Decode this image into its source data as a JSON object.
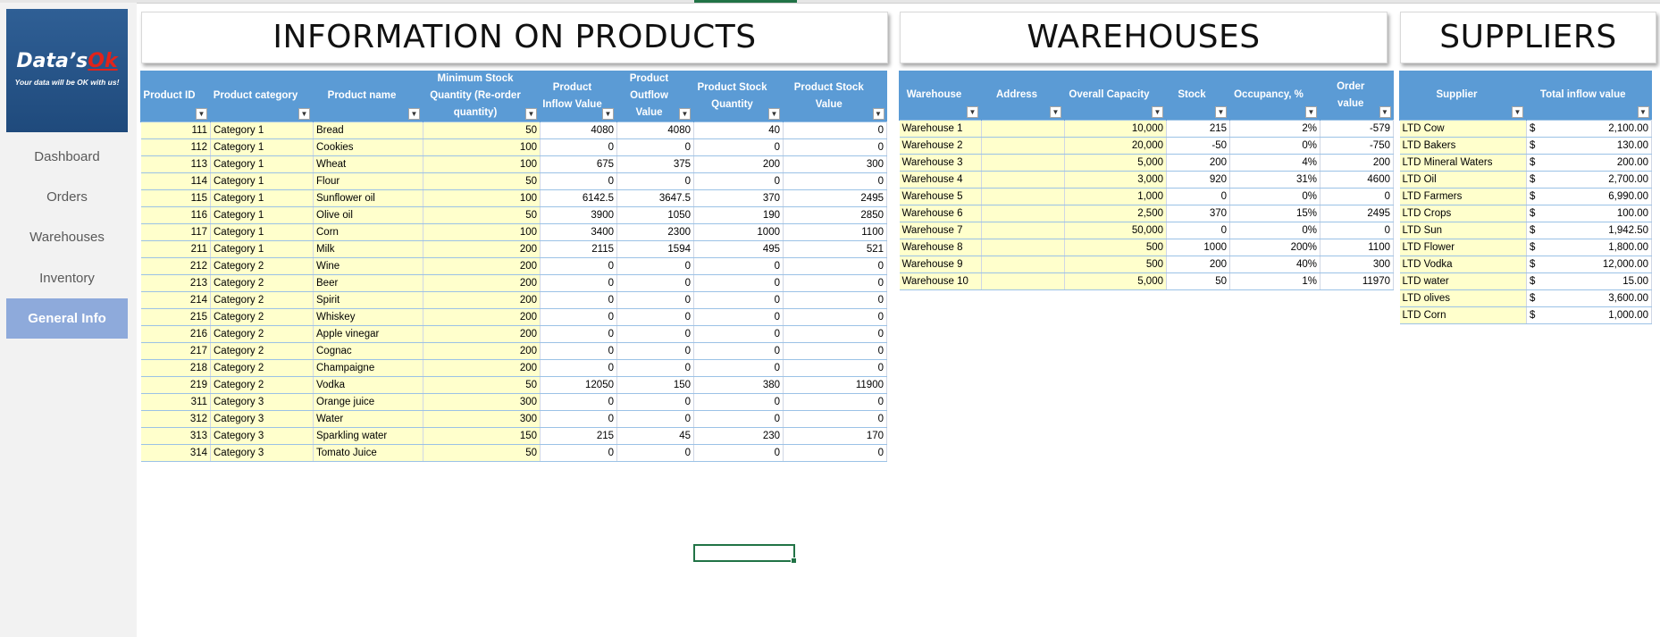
{
  "brand": {
    "name_main": "Data’s",
    "name_ok": "Ok",
    "tagline": "Your data will be OK with us!"
  },
  "nav": [
    {
      "label": "Dashboard",
      "active": false
    },
    {
      "label": "Orders",
      "active": false
    },
    {
      "label": "Warehouses",
      "active": false
    },
    {
      "label": "Inventory",
      "active": false
    },
    {
      "label": "General Info",
      "active": true
    }
  ],
  "titles": {
    "products": "INFORMATION ON PRODUCTS",
    "warehouses": "WAREHOUSES",
    "suppliers": "SUPPLIERS"
  },
  "products": {
    "headers": [
      "Product ID",
      "Product category",
      "Product name",
      "Minimum Stock Quantity (Re-order quantity)",
      "Product Inflow Value",
      "Product Outflow Value",
      "Product Stock Quantity",
      "Product Stock Value"
    ],
    "rows": [
      [
        "111",
        "Category 1",
        "Bread",
        "50",
        "4080",
        "4080",
        "40",
        "0"
      ],
      [
        "112",
        "Category 1",
        "Cookies",
        "100",
        "0",
        "0",
        "0",
        "0"
      ],
      [
        "113",
        "Category 1",
        "Wheat",
        "100",
        "675",
        "375",
        "200",
        "300"
      ],
      [
        "114",
        "Category 1",
        "Flour",
        "50",
        "0",
        "0",
        "0",
        "0"
      ],
      [
        "115",
        "Category 1",
        "Sunflower oil",
        "100",
        "6142.5",
        "3647.5",
        "370",
        "2495"
      ],
      [
        "116",
        "Category 1",
        "Olive oil",
        "50",
        "3900",
        "1050",
        "190",
        "2850"
      ],
      [
        "117",
        "Category 1",
        "Corn",
        "100",
        "3400",
        "2300",
        "1000",
        "1100"
      ],
      [
        "211",
        "Category 1",
        "Milk",
        "200",
        "2115",
        "1594",
        "495",
        "521"
      ],
      [
        "212",
        "Category 2",
        "Wine",
        "200",
        "0",
        "0",
        "0",
        "0"
      ],
      [
        "213",
        "Category 2",
        "Beer",
        "200",
        "0",
        "0",
        "0",
        "0"
      ],
      [
        "214",
        "Category 2",
        "Spirit",
        "200",
        "0",
        "0",
        "0",
        "0"
      ],
      [
        "215",
        "Category 2",
        "Whiskey",
        "200",
        "0",
        "0",
        "0",
        "0"
      ],
      [
        "216",
        "Category 2",
        "Apple vinegar",
        "200",
        "0",
        "0",
        "0",
        "0"
      ],
      [
        "217",
        "Category 2",
        "Cognac",
        "200",
        "0",
        "0",
        "0",
        "0"
      ],
      [
        "218",
        "Category 2",
        "Champaigne",
        "200",
        "0",
        "0",
        "0",
        "0"
      ],
      [
        "219",
        "Category 2",
        "Vodka",
        "50",
        "12050",
        "150",
        "380",
        "11900"
      ],
      [
        "311",
        "Category 3",
        "Orange juice",
        "300",
        "0",
        "0",
        "0",
        "0"
      ],
      [
        "312",
        "Category 3",
        "Water",
        "300",
        "0",
        "0",
        "0",
        "0"
      ],
      [
        "313",
        "Category 3",
        "Sparkling water",
        "150",
        "215",
        "45",
        "230",
        "170"
      ],
      [
        "314",
        "Category 3",
        "Tomato Juice",
        "50",
        "0",
        "0",
        "0",
        "0"
      ]
    ]
  },
  "warehouses": {
    "headers": [
      "Warehouse",
      "Address",
      "Overall Capacity",
      "Stock",
      "Occupancy, %",
      "Order value"
    ],
    "rows": [
      [
        "Warehouse 1",
        "",
        "10,000",
        "215",
        "2%",
        "-579"
      ],
      [
        "Warehouse 2",
        "",
        "20,000",
        "-50",
        "0%",
        "-750"
      ],
      [
        "Warehouse 3",
        "",
        "5,000",
        "200",
        "4%",
        "200"
      ],
      [
        "Warehouse 4",
        "",
        "3,000",
        "920",
        "31%",
        "4600"
      ],
      [
        "Warehouse 5",
        "",
        "1,000",
        "0",
        "0%",
        "0"
      ],
      [
        "Warehouse 6",
        "",
        "2,500",
        "370",
        "15%",
        "2495"
      ],
      [
        "Warehouse 7",
        "",
        "50,000",
        "0",
        "0%",
        "0"
      ],
      [
        "Warehouse 8",
        "",
        "500",
        "1000",
        "200%",
        "1100"
      ],
      [
        "Warehouse 9",
        "",
        "500",
        "200",
        "40%",
        "300"
      ],
      [
        "Warehouse 10",
        "",
        "5,000",
        "50",
        "1%",
        "11970"
      ]
    ]
  },
  "suppliers": {
    "headers": [
      "Supplier",
      "Total inflow value"
    ],
    "currency": "$",
    "rows": [
      [
        "LTD Cow",
        "2,100.00"
      ],
      [
        "LTD Bakers",
        "130.00"
      ],
      [
        "LTD Mineral Waters",
        "200.00"
      ],
      [
        "LTD Oil",
        "2,700.00"
      ],
      [
        "LTD Farmers",
        "6,990.00"
      ],
      [
        "LTD Crops",
        "100.00"
      ],
      [
        "LTD Sun",
        "1,942.50"
      ],
      [
        "LTD Flower",
        "1,800.00"
      ],
      [
        "LTD Vodka",
        "12,000.00"
      ],
      [
        "LTD water",
        "15.00"
      ],
      [
        "LTD olives",
        "3,600.00"
      ],
      [
        "LTD Corn",
        "1,000.00"
      ]
    ]
  }
}
